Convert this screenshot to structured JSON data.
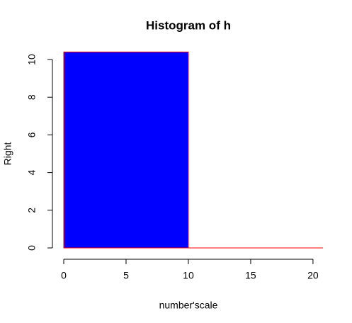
{
  "chart_data": {
    "type": "histogram",
    "title": "Histogram of h",
    "x_label": "number'scale",
    "y_label": "Right",
    "bins": [
      0,
      10,
      20.8
    ],
    "counts": [
      10.4,
      0
    ],
    "color": "#0000ff",
    "edge_color": "#ff0000",
    "xlim": [
      0,
      20.8
    ],
    "ylim": [
      0,
      10.4
    ],
    "xticks": [
      0,
      5,
      10,
      15,
      20
    ],
    "yticks": [
      0,
      2,
      4,
      6,
      8,
      10
    ]
  }
}
